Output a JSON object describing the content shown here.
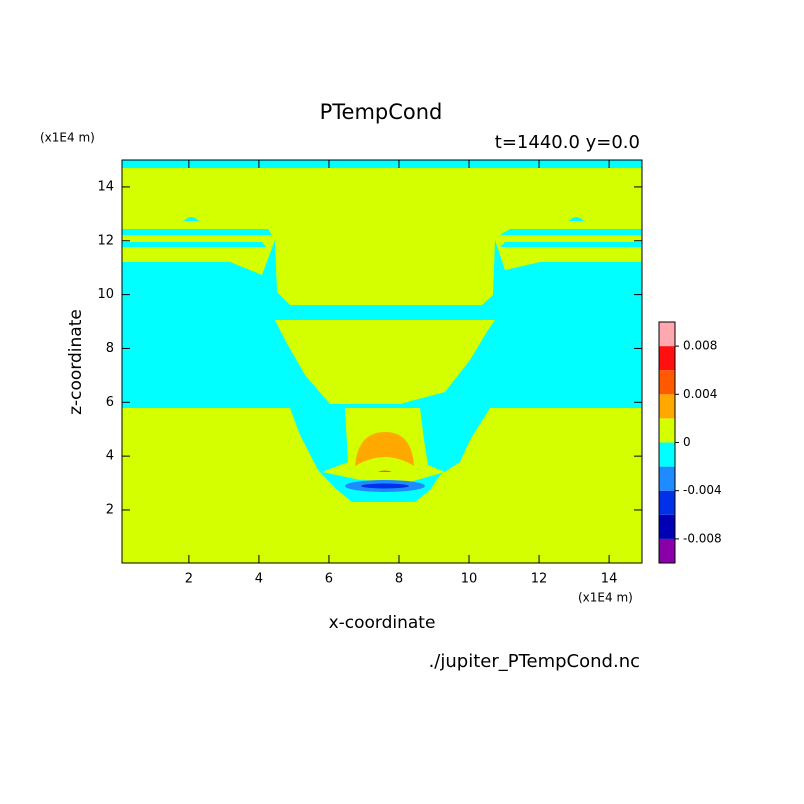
{
  "chart_data": {
    "type": "contour",
    "title": "PTempCond",
    "subtitle": "t=1440.0 y=0.0",
    "x_label": "x-coordinate",
    "y_label": "z-coordinate",
    "x_unit": "(x1E4 m)",
    "y_unit": "(x1E4 m)",
    "source": "./jupiter_PTempCond.nc",
    "xlim": [
      0.09,
      14.94
    ],
    "ylim": [
      0.03,
      15.0
    ],
    "xticks": [
      2,
      4,
      6,
      8,
      10,
      12,
      14
    ],
    "yticks": [
      2,
      4,
      6,
      8,
      10,
      12,
      14
    ],
    "colorbar": {
      "levels": [
        -0.01,
        -0.008,
        -0.006,
        -0.004,
        -0.002,
        0,
        0.002,
        0.004,
        0.006,
        0.008,
        0.01
      ],
      "colors": [
        "#8a00a8",
        "#0000b4",
        "#0030e8",
        "#1e8cff",
        "#00ffff",
        "#d4ff00",
        "#ffa800",
        "#ff5a00",
        "#ff1010",
        "#ffa8b0"
      ],
      "ticks": [
        -0.008,
        -0.004,
        0,
        0.004,
        0.008
      ]
    }
  }
}
